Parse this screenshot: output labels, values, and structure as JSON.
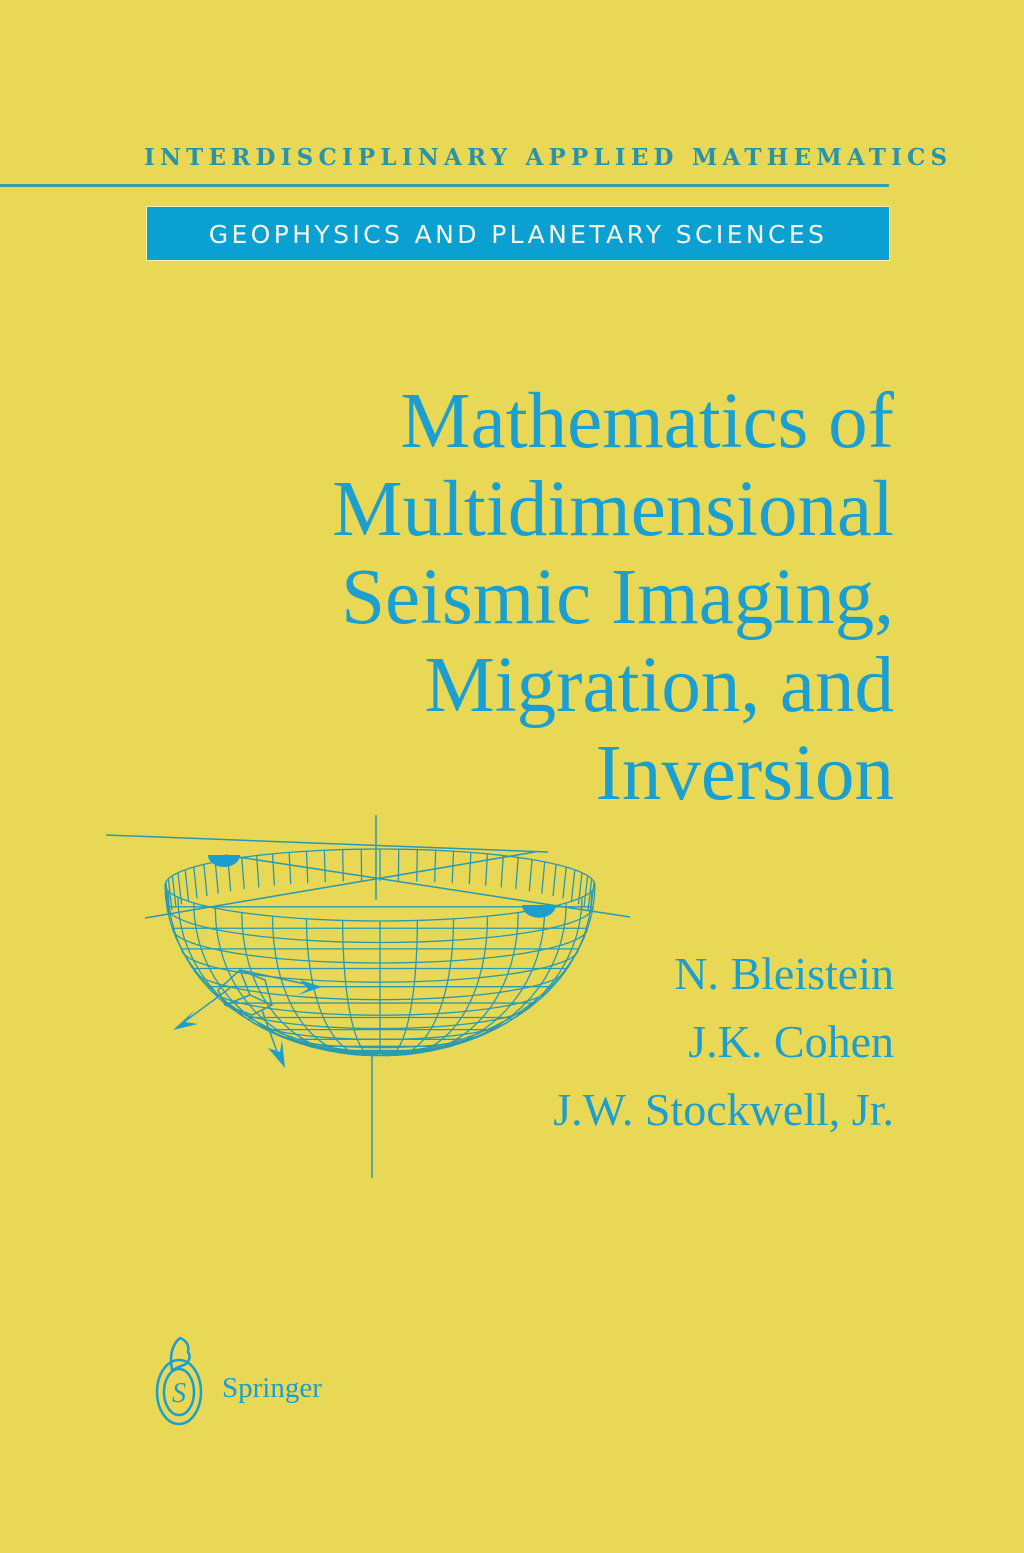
{
  "series": "INTERDISCIPLINARY APPLIED MATHEMATICS",
  "subseries": "GEOPHYSICS AND PLANETARY SCIENCES",
  "title_lines": [
    "Mathematics of",
    "Multidimensional",
    "Seismic Imaging,",
    "Migration, and",
    "Inversion"
  ],
  "authors": [
    "N. Bleistein",
    "J.K. Cohen",
    "J.W. Stockwell, Jr."
  ],
  "publisher": "Springer",
  "colors": {
    "background": "#e8d856",
    "accent": "#1a9fd0",
    "series_text": "#2a93a8",
    "mesh": "#2a9ab0"
  },
  "illustration": "hemispherical-mesh-bowl-icon",
  "logo": "springer-knight-logo-icon"
}
